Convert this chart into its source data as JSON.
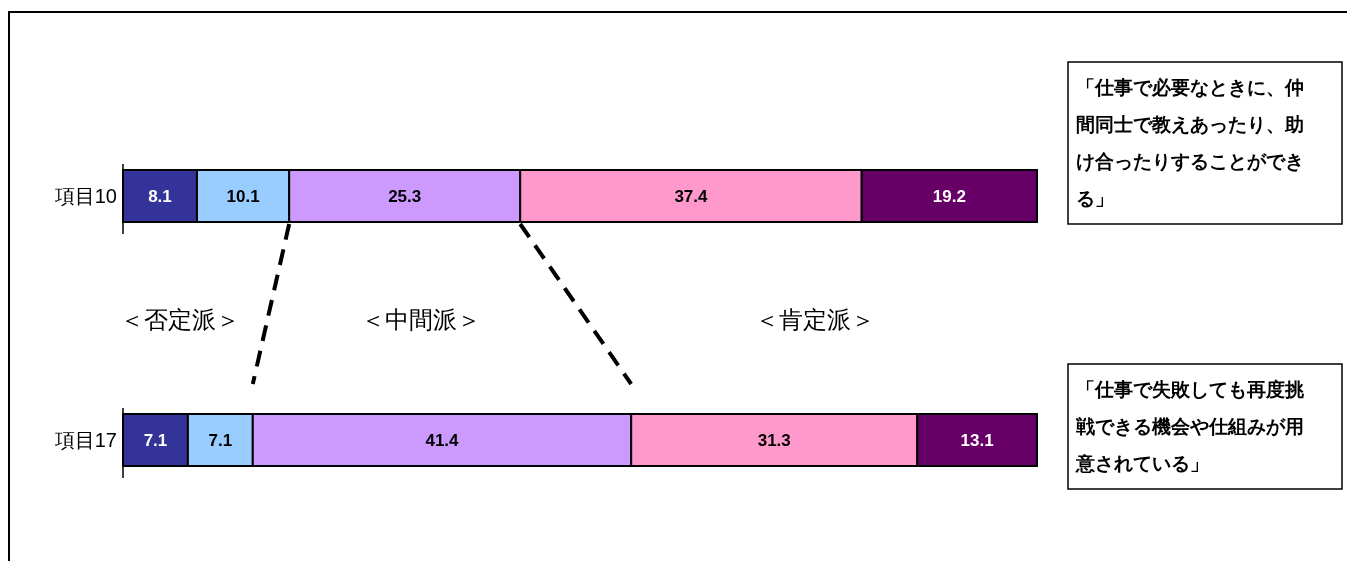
{
  "chart_data": [
    {
      "type": "bar",
      "orientation": "horizontal",
      "stacked": true,
      "data_labels": true,
      "tick_labels": "y",
      "categories": [
        "項目10"
      ],
      "series": [
        {
          "color": "#333399",
          "values": [
            8.1
          ]
        },
        {
          "color": "#99ccff",
          "values": [
            10.1
          ]
        },
        {
          "color": "#cc99ff",
          "values": [
            25.3
          ]
        },
        {
          "color": "#ff99cc",
          "values": [
            37.4
          ]
        },
        {
          "color": "#660066",
          "values": [
            19.2
          ]
        }
      ],
      "annotations": [
        "「仕事で必要なときに、仲間同士で教えあったり、助け合ったりすることができる」",
        "＜否定派＞",
        "＜中間派＞",
        "＜肯定派＞"
      ]
    },
    {
      "type": "bar",
      "orientation": "horizontal",
      "stacked": true,
      "data_labels": true,
      "tick_labels": "y",
      "categories": [
        "項目17"
      ],
      "series": [
        {
          "color": "#333399",
          "values": [
            7.1
          ]
        },
        {
          "color": "#99ccff",
          "values": [
            7.1
          ]
        },
        {
          "color": "#cc99ff",
          "values": [
            41.4
          ]
        },
        {
          "color": "#ff99cc",
          "values": [
            31.3
          ]
        },
        {
          "color": "#660066",
          "values": [
            13.1
          ]
        }
      ],
      "annotations": [
        "「仕事で失敗しても再度挑戦できる機会や仕組みが用意されている」"
      ]
    }
  ]
}
